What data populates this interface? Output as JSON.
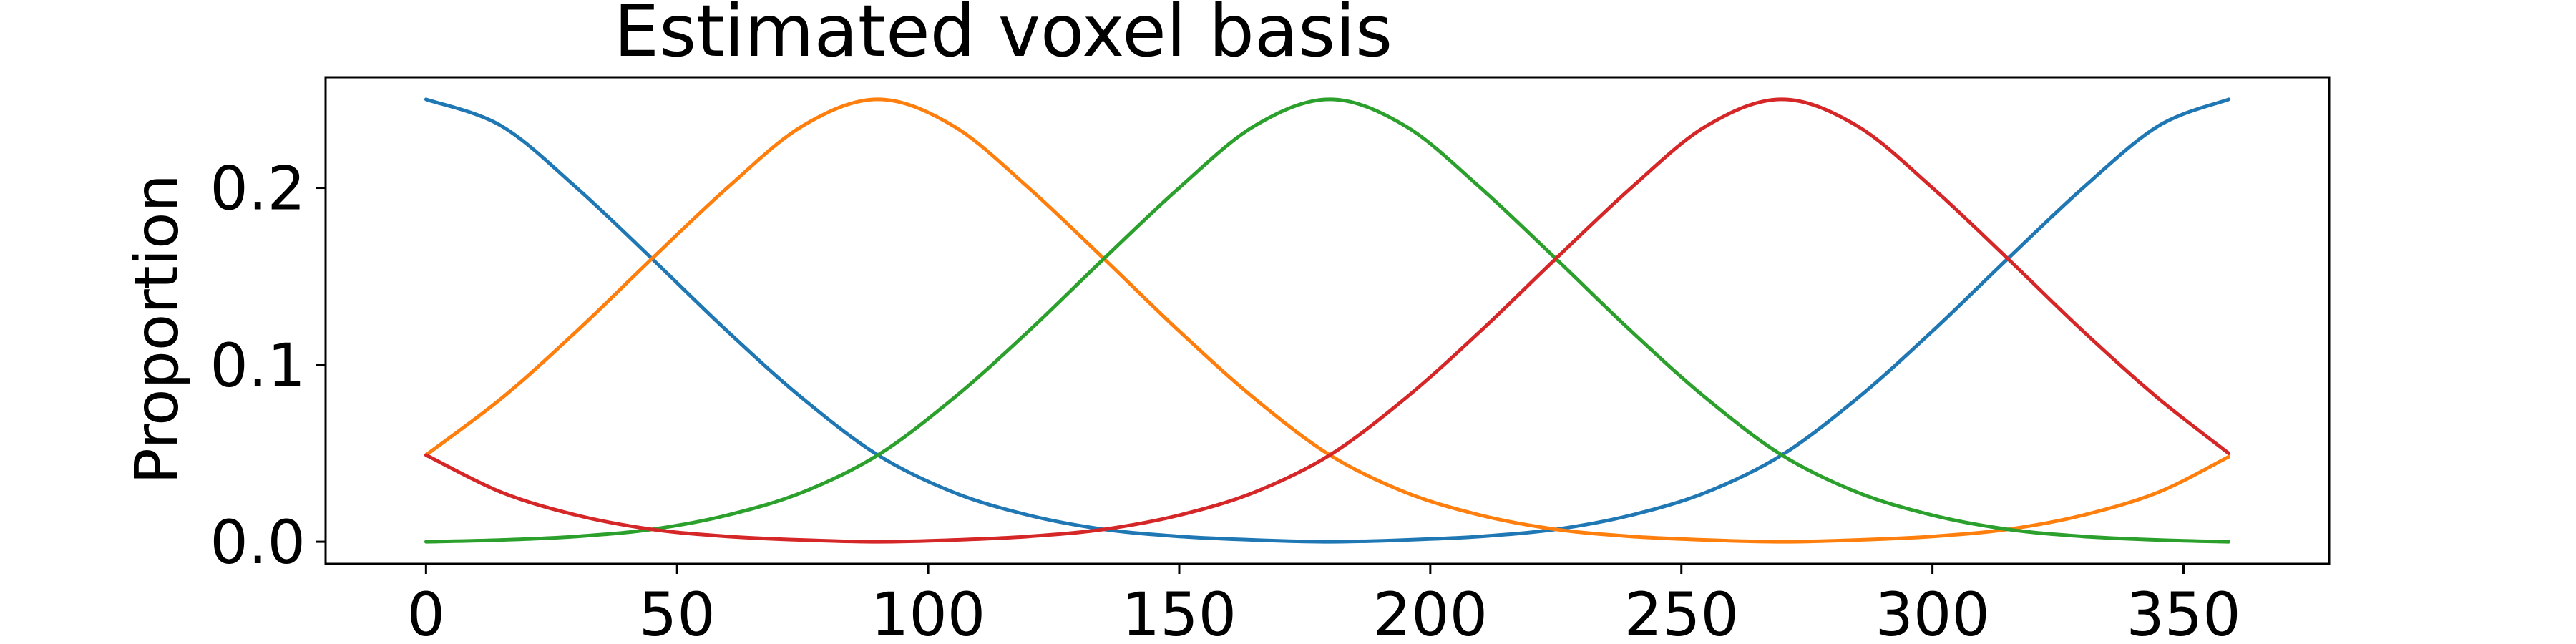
{
  "chart_data": {
    "type": "line",
    "title": "Estimated voxel basis",
    "xlabel": "",
    "ylabel": "Proportion",
    "xlim": [
      -20,
      379
    ],
    "ylim": [
      -0.0125,
      0.2625
    ],
    "xticks": [
      0,
      50,
      100,
      150,
      200,
      250,
      300,
      350
    ],
    "yticks": [
      0.0,
      0.1,
      0.2
    ],
    "ytick_labels": [
      "0.0",
      "0.1",
      "0.2"
    ],
    "grid": false,
    "legend": "none",
    "x": [
      0,
      15,
      30,
      45,
      60,
      75,
      90,
      105,
      120,
      135,
      150,
      165,
      180,
      195,
      210,
      225,
      240,
      255,
      270,
      285,
      300,
      315,
      330,
      345,
      359
    ],
    "series": [
      {
        "color": "#1f77b4",
        "values": [
          0.25,
          0.235,
          0.2,
          0.16,
          0.119,
          0.081,
          0.049,
          0.028,
          0.015,
          0.007,
          0.003,
          0.001,
          0.0,
          0.001,
          0.003,
          0.007,
          0.015,
          0.028,
          0.049,
          0.081,
          0.119,
          0.16,
          0.2,
          0.235,
          0.25
        ]
      },
      {
        "color": "#ff7f0e",
        "values": [
          0.049,
          0.081,
          0.119,
          0.16,
          0.2,
          0.235,
          0.25,
          0.235,
          0.2,
          0.16,
          0.119,
          0.081,
          0.049,
          0.028,
          0.015,
          0.007,
          0.003,
          0.001,
          0.0,
          0.001,
          0.003,
          0.007,
          0.015,
          0.028,
          0.048
        ]
      },
      {
        "color": "#2ca02c",
        "values": [
          0.0,
          0.001,
          0.003,
          0.007,
          0.015,
          0.028,
          0.049,
          0.081,
          0.119,
          0.16,
          0.2,
          0.235,
          0.25,
          0.235,
          0.2,
          0.16,
          0.119,
          0.081,
          0.049,
          0.028,
          0.015,
          0.007,
          0.003,
          0.001,
          0.0
        ]
      },
      {
        "color": "#d62728",
        "values": [
          0.049,
          0.028,
          0.015,
          0.007,
          0.003,
          0.001,
          0.0,
          0.001,
          0.003,
          0.007,
          0.015,
          0.028,
          0.049,
          0.081,
          0.119,
          0.16,
          0.2,
          0.235,
          0.25,
          0.235,
          0.2,
          0.16,
          0.119,
          0.081,
          0.05
        ]
      }
    ]
  }
}
